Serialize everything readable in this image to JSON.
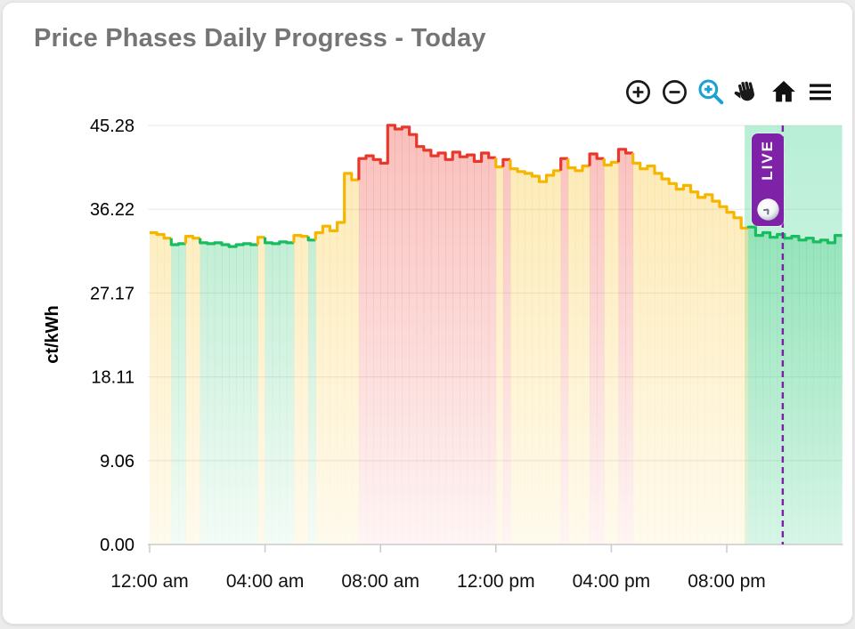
{
  "card": {
    "title": "Price Phases Daily Progress - Today"
  },
  "toolbar": {
    "active_color": "#1ba2d5",
    "icon_color": "#1a1a1a",
    "icons": [
      {
        "name": "zoom-in-icon"
      },
      {
        "name": "zoom-out-icon"
      },
      {
        "name": "zoom-select-icon",
        "active": true
      },
      {
        "name": "pan-hand-icon"
      },
      {
        "name": "home-reset-icon"
      },
      {
        "name": "menu-icon"
      }
    ]
  },
  "live_badge": {
    "label": "LIVE",
    "color": "#7e22a8",
    "icon": "clock-icon"
  },
  "chart_data": {
    "type": "area",
    "subtype": "step-line-phases",
    "title": "Price Phases Daily Progress - Today",
    "xlabel": "",
    "ylabel": "ct/kWh",
    "unit": "ct/kWh",
    "ylim": [
      0,
      45.28
    ],
    "xlim_hours": [
      0,
      24
    ],
    "grid": "horizontal-faint",
    "y_ticks": [
      {
        "label": "45.28",
        "value": 45.28
      },
      {
        "label": "36.22",
        "value": 36.22
      },
      {
        "label": "27.17",
        "value": 27.17
      },
      {
        "label": "18.11",
        "value": 18.11
      },
      {
        "label": "9.06",
        "value": 9.06
      },
      {
        "label": "0.00",
        "value": 0.0
      }
    ],
    "x_ticks": [
      {
        "label": "12:00 am",
        "hour": 0
      },
      {
        "label": "04:00 am",
        "hour": 4
      },
      {
        "label": "08:00 am",
        "hour": 8
      },
      {
        "label": "12:00 pm",
        "hour": 12
      },
      {
        "label": "04:00 pm",
        "hour": 16
      },
      {
        "label": "08:00 pm",
        "hour": 20
      }
    ],
    "phase_colors": {
      "G": "#17bd5f",
      "Y": "#f6b600",
      "R": "#ea372c"
    },
    "now_line": {
      "hour": 21.94,
      "color": "#7c21a5",
      "style": "dashed"
    },
    "live_band": {
      "start_hour": 20.62,
      "end_hour": 24,
      "color": "#2fcf86"
    },
    "series_start": "00:00",
    "series_step_minutes": 15,
    "series": [
      [
        33.7,
        "Y"
      ],
      [
        33.5,
        "Y"
      ],
      [
        33.1,
        "Y"
      ],
      [
        32.4,
        "G"
      ],
      [
        32.5,
        "G"
      ],
      [
        33.3,
        "Y"
      ],
      [
        33.1,
        "Y"
      ],
      [
        32.6,
        "G"
      ],
      [
        32.5,
        "G"
      ],
      [
        32.6,
        "G"
      ],
      [
        32.4,
        "G"
      ],
      [
        32.2,
        "G"
      ],
      [
        32.4,
        "G"
      ],
      [
        32.5,
        "G"
      ],
      [
        32.4,
        "G"
      ],
      [
        33.2,
        "Y"
      ],
      [
        32.6,
        "G"
      ],
      [
        32.5,
        "G"
      ],
      [
        32.7,
        "G"
      ],
      [
        32.6,
        "G"
      ],
      [
        33.4,
        "Y"
      ],
      [
        33.3,
        "Y"
      ],
      [
        32.9,
        "G"
      ],
      [
        33.7,
        "Y"
      ],
      [
        34.4,
        "Y"
      ],
      [
        33.9,
        "Y"
      ],
      [
        34.8,
        "Y"
      ],
      [
        40.1,
        "Y"
      ],
      [
        39.4,
        "Y"
      ],
      [
        41.7,
        "R"
      ],
      [
        42.0,
        "R"
      ],
      [
        41.6,
        "R"
      ],
      [
        41.2,
        "R"
      ],
      [
        45.3,
        "R"
      ],
      [
        44.9,
        "R"
      ],
      [
        45.1,
        "R"
      ],
      [
        44.3,
        "R"
      ],
      [
        43.0,
        "R"
      ],
      [
        42.6,
        "R"
      ],
      [
        42.0,
        "R"
      ],
      [
        42.3,
        "R"
      ],
      [
        41.6,
        "R"
      ],
      [
        42.4,
        "R"
      ],
      [
        41.9,
        "R"
      ],
      [
        42.1,
        "R"
      ],
      [
        41.4,
        "R"
      ],
      [
        42.3,
        "R"
      ],
      [
        41.8,
        "R"
      ],
      [
        40.8,
        "Y"
      ],
      [
        41.6,
        "R"
      ],
      [
        40.6,
        "Y"
      ],
      [
        40.3,
        "Y"
      ],
      [
        40.1,
        "Y"
      ],
      [
        39.8,
        "Y"
      ],
      [
        39.2,
        "Y"
      ],
      [
        39.9,
        "Y"
      ],
      [
        40.4,
        "Y"
      ],
      [
        41.7,
        "R"
      ],
      [
        40.7,
        "Y"
      ],
      [
        40.4,
        "Y"
      ],
      [
        40.9,
        "Y"
      ],
      [
        42.2,
        "R"
      ],
      [
        41.7,
        "R"
      ],
      [
        41.0,
        "Y"
      ],
      [
        41.3,
        "Y"
      ],
      [
        42.7,
        "R"
      ],
      [
        42.3,
        "R"
      ],
      [
        41.2,
        "Y"
      ],
      [
        40.6,
        "Y"
      ],
      [
        40.9,
        "Y"
      ],
      [
        40.1,
        "Y"
      ],
      [
        39.5,
        "Y"
      ],
      [
        39.0,
        "Y"
      ],
      [
        38.4,
        "Y"
      ],
      [
        38.8,
        "Y"
      ],
      [
        38.1,
        "Y"
      ],
      [
        37.5,
        "Y"
      ],
      [
        37.8,
        "Y"
      ],
      [
        37.1,
        "Y"
      ],
      [
        36.5,
        "Y"
      ],
      [
        35.9,
        "Y"
      ],
      [
        35.3,
        "Y"
      ],
      [
        34.2,
        "Y"
      ],
      [
        34.3,
        "G"
      ],
      [
        33.4,
        "G"
      ],
      [
        33.7,
        "G"
      ],
      [
        33.2,
        "G"
      ],
      [
        33.5,
        "G"
      ],
      [
        33.1,
        "G"
      ],
      [
        33.3,
        "G"
      ],
      [
        32.9,
        "G"
      ],
      [
        33.1,
        "G"
      ],
      [
        32.7,
        "G"
      ],
      [
        32.9,
        "G"
      ],
      [
        32.6,
        "G"
      ],
      [
        33.4,
        "G"
      ]
    ]
  }
}
